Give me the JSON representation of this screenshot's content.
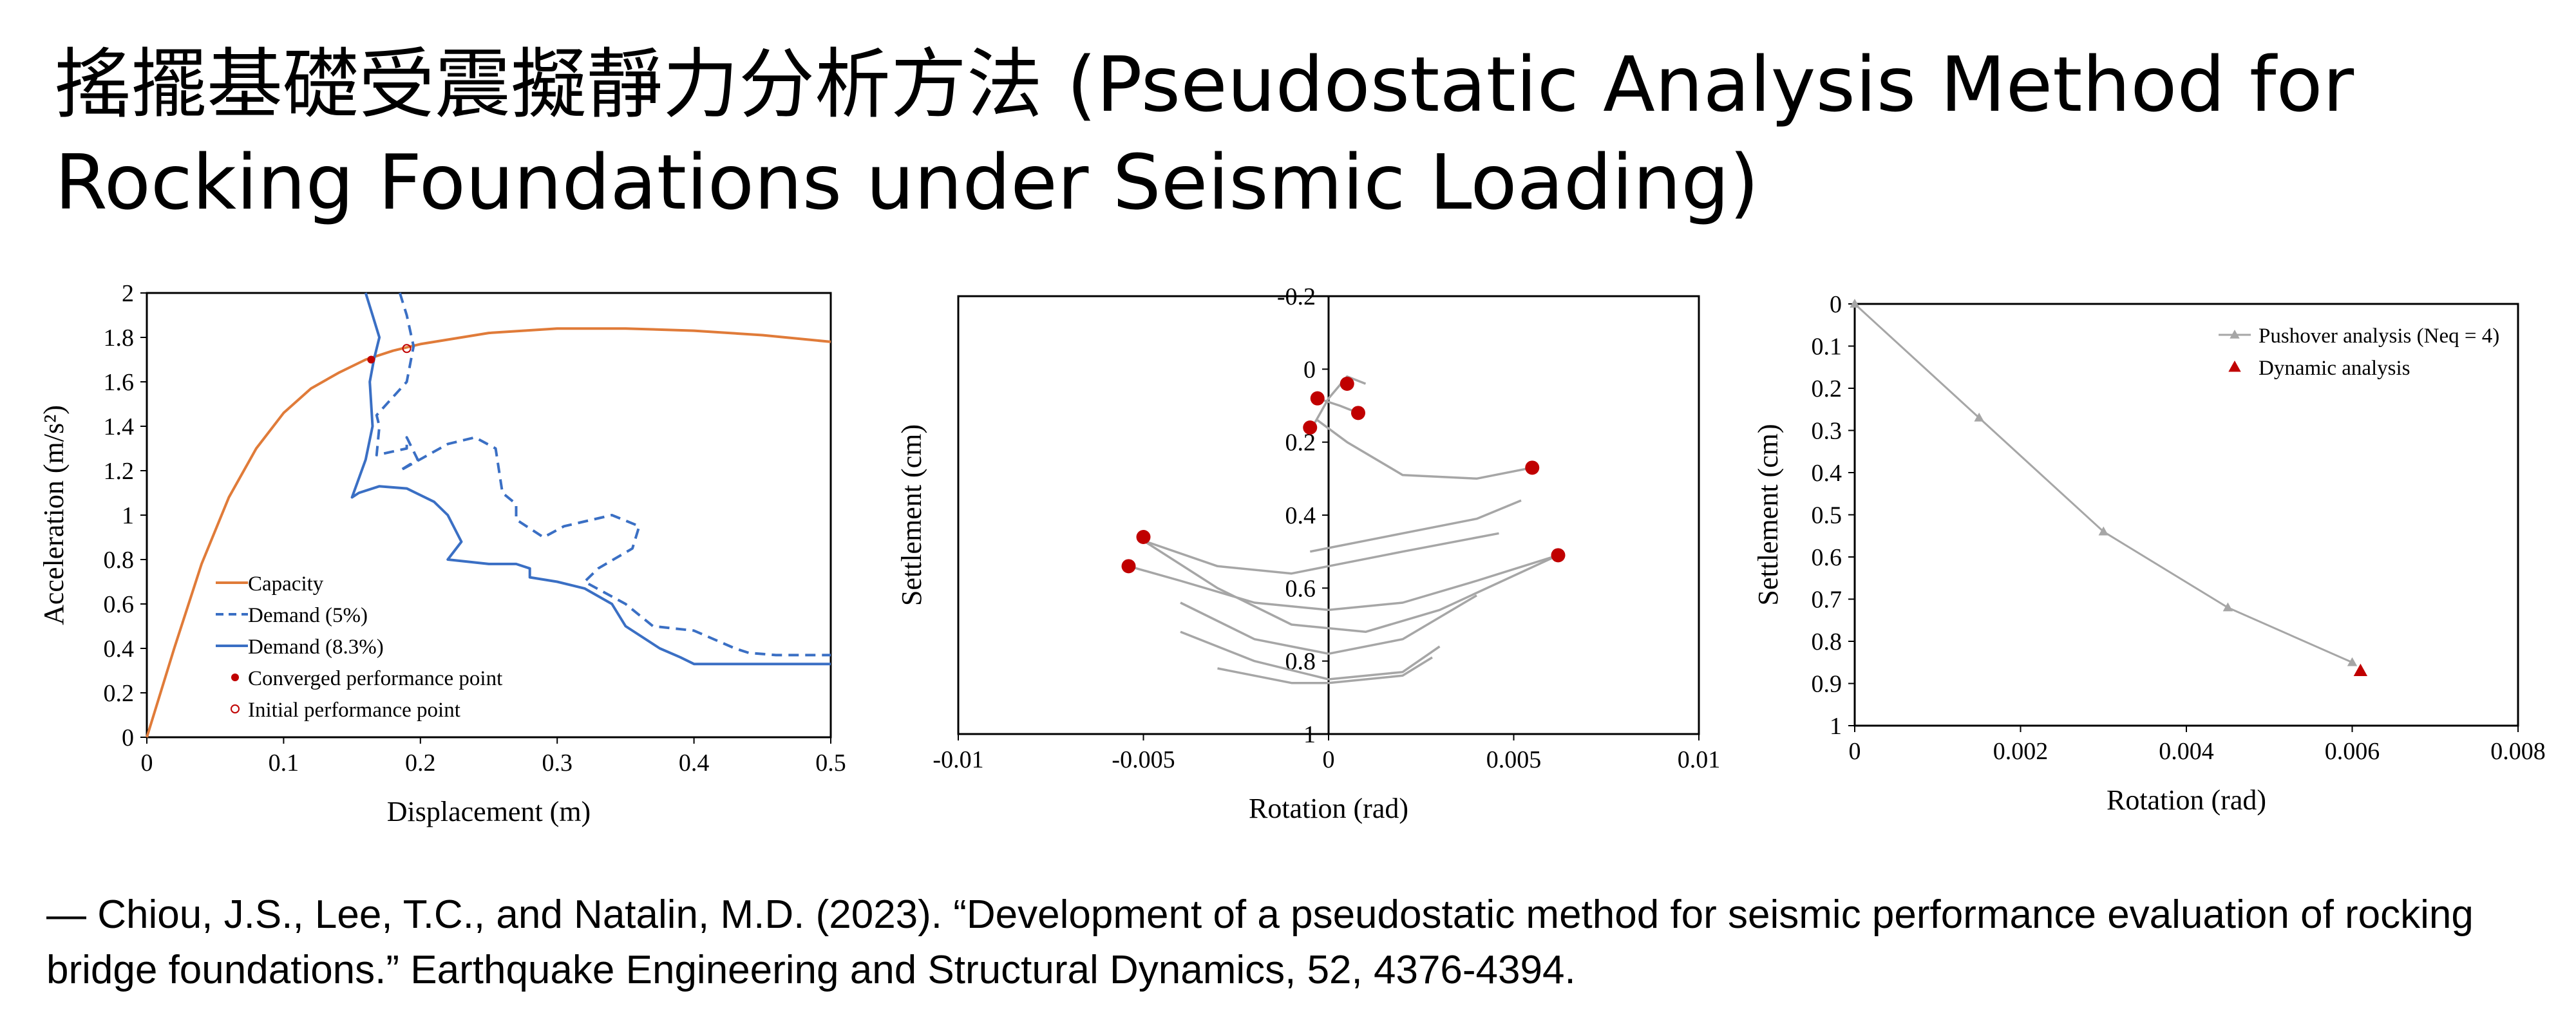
{
  "page": {
    "title": "搖擺基礎受震擬靜力分析方法 (Pseudostatic Analysis Method for Rocking Foundations under Seismic Loading)",
    "citation": "― Chiou, J.S., Lee, T.C., and Natalin, M.D. (2023). “Development of a pseudostatic method for seismic performance evaluation of rocking bridge foundations.” Earthquake Engineering and Structural Dynamics, 52, 4376-4394."
  },
  "colors": {
    "capacity": "#e07b39",
    "demand": "#3a6fc4",
    "marker_red": "#c00000",
    "gray_line": "#a6a6a6",
    "axis": "#000000"
  },
  "chart_data": [
    {
      "type": "line",
      "xlabel": "Displacement (m)",
      "ylabel": "Acceleration (m/s²)",
      "xlim": [
        0,
        0.5
      ],
      "ylim": [
        0,
        2
      ],
      "xticks": [
        "0",
        "0.1",
        "0.2",
        "0.3",
        "0.4",
        "0.5"
      ],
      "yticks": [
        "0",
        "0.2",
        "0.4",
        "0.6",
        "0.8",
        "1",
        "1.2",
        "1.4",
        "1.6",
        "1.8",
        "2"
      ],
      "legend_position": "bottom-left",
      "series": [
        {
          "name": "Capacity",
          "style": "solid",
          "color": "#e07b39",
          "x": [
            0,
            0.02,
            0.04,
            0.06,
            0.08,
            0.1,
            0.12,
            0.14,
            0.16,
            0.18,
            0.2,
            0.25,
            0.3,
            0.35,
            0.4,
            0.45,
            0.5
          ],
          "y": [
            0,
            0.4,
            0.78,
            1.08,
            1.3,
            1.46,
            1.57,
            1.64,
            1.7,
            1.74,
            1.77,
            1.82,
            1.84,
            1.84,
            1.83,
            1.81,
            1.78
          ]
        },
        {
          "name": "Demand (5%)",
          "style": "dashed",
          "color": "#3a6fc4",
          "x": [
            0.185,
            0.19,
            0.195,
            0.19,
            0.168,
            0.17,
            0.168,
            0.19,
            0.19,
            0.198,
            0.185,
            0.22,
            0.24,
            0.255,
            0.26,
            0.27,
            0.27,
            0.29,
            0.305,
            0.34,
            0.36,
            0.355,
            0.33,
            0.32,
            0.35,
            0.37,
            0.4,
            0.43,
            0.44,
            0.46,
            0.5
          ],
          "y": [
            2.0,
            1.9,
            1.76,
            1.6,
            1.45,
            1.4,
            1.27,
            1.3,
            1.35,
            1.25,
            1.2,
            1.32,
            1.35,
            1.3,
            1.1,
            1.05,
            0.98,
            0.9,
            0.95,
            1.0,
            0.95,
            0.85,
            0.76,
            0.7,
            0.6,
            0.5,
            0.48,
            0.4,
            0.38,
            0.37,
            0.37
          ]
        },
        {
          "name": "Demand (8.3%)",
          "style": "solid",
          "color": "#3a6fc4",
          "x": [
            0.16,
            0.165,
            0.17,
            0.166,
            0.163,
            0.165,
            0.16,
            0.15,
            0.155,
            0.17,
            0.19,
            0.21,
            0.22,
            0.23,
            0.22,
            0.25,
            0.27,
            0.28,
            0.28,
            0.3,
            0.32,
            0.34,
            0.35,
            0.375,
            0.39,
            0.4,
            0.42,
            0.45,
            0.5
          ],
          "y": [
            2.0,
            1.9,
            1.8,
            1.7,
            1.6,
            1.4,
            1.25,
            1.08,
            1.1,
            1.13,
            1.12,
            1.06,
            1.0,
            0.88,
            0.8,
            0.78,
            0.78,
            0.76,
            0.72,
            0.7,
            0.67,
            0.6,
            0.5,
            0.4,
            0.36,
            0.33,
            0.33,
            0.33,
            0.33
          ]
        },
        {
          "name": "Converged performance point",
          "type": "marker",
          "marker": "filled-circle",
          "color": "#c00000",
          "x": [
            0.164
          ],
          "y": [
            1.7
          ]
        },
        {
          "name": "Initial performance point",
          "type": "marker",
          "marker": "open-circle",
          "color": "#c00000",
          "x": [
            0.19
          ],
          "y": [
            1.75
          ]
        }
      ]
    },
    {
      "type": "line",
      "xlabel": "Rotation (rad)",
      "ylabel": "Settlement (cm)",
      "xlim": [
        -0.01,
        0.01
      ],
      "ylim": [
        -0.2,
        1
      ],
      "y_inverted": true,
      "xticks": [
        "-0.01",
        "-0.005",
        "0",
        "0.005",
        "0.01"
      ],
      "yticks": [
        "-0.2",
        "0",
        "0.2",
        "0.4",
        "0.6",
        "0.8",
        "1"
      ],
      "series": [
        {
          "name": "",
          "style": "solid",
          "color": "#a6a6a6",
          "loops": [
            {
              "x": [
                0.0062,
                0.004,
                0.002,
                0.0,
                -0.002,
                -0.004,
                -0.0054
              ],
              "y": [
                0.51,
                0.58,
                0.64,
                0.66,
                0.64,
                0.58,
                0.54
              ]
            },
            {
              "x": [
                -0.005,
                -0.003,
                -0.001,
                0.001,
                0.003,
                0.0062
              ],
              "y": [
                0.47,
                0.6,
                0.7,
                0.72,
                0.66,
                0.51
              ]
            },
            {
              "x": [
                -0.005,
                -0.003,
                -0.001,
                0.0,
                0.002,
                0.0046
              ],
              "y": [
                0.47,
                0.54,
                0.56,
                0.54,
                0.5,
                0.45
              ]
            },
            {
              "x": [
                -0.004,
                -0.002,
                0.0,
                0.002,
                0.004
              ],
              "y": [
                0.64,
                0.74,
                0.78,
                0.74,
                0.62
              ]
            },
            {
              "x": [
                -0.004,
                -0.002,
                0.0,
                0.002,
                0.003
              ],
              "y": [
                0.72,
                0.8,
                0.85,
                0.83,
                0.76
              ]
            },
            {
              "x": [
                -0.003,
                -0.001,
                0.0,
                0.002,
                0.0028
              ],
              "y": [
                0.82,
                0.86,
                0.86,
                0.84,
                0.79
              ]
            },
            {
              "x": [
                0.0055,
                0.004,
                0.002,
                0.0005,
                -0.0003
              ],
              "y": [
                0.27,
                0.3,
                0.29,
                0.2,
                0.14
              ]
            },
            {
              "x": [
                -0.0005,
                0.0,
                0.001,
                0.002,
                0.004,
                0.0052
              ],
              "y": [
                0.5,
                0.49,
                0.47,
                0.45,
                0.41,
                0.36
              ]
            },
            {
              "x": [
                -0.0005,
                0.0,
                0.0005,
                0.001
              ],
              "y": [
                0.17,
                0.08,
                0.02,
                0.04
              ]
            },
            {
              "x": [
                -0.0003,
                0.0003,
                0.0008
              ],
              "y": [
                0.08,
                0.1,
                0.12
              ]
            }
          ]
        },
        {
          "name": "",
          "type": "marker",
          "marker": "filled-circle",
          "color": "#c00000",
          "x": [
            -0.005,
            -0.0054,
            0.0062,
            0.0055,
            -0.0003,
            0.0005,
            -0.0005,
            0.0008
          ],
          "y": [
            0.46,
            0.54,
            0.51,
            0.27,
            0.08,
            0.04,
            0.16,
            0.12
          ]
        }
      ]
    },
    {
      "type": "line",
      "xlabel": "Rotation (rad)",
      "ylabel": "Settlement (cm)",
      "xlim": [
        0,
        0.008
      ],
      "ylim": [
        0,
        1
      ],
      "y_inverted": true,
      "xticks": [
        "0",
        "0.002",
        "0.004",
        "0.006",
        "0.008"
      ],
      "yticks": [
        "0",
        "0.1",
        "0.2",
        "0.3",
        "0.4",
        "0.5",
        "0.6",
        "0.7",
        "0.8",
        "0.9",
        "1"
      ],
      "legend_position": "top-right",
      "series": [
        {
          "name": "Pushover analysis (Neq = 4)",
          "style": "solid",
          "marker": "triangle",
          "color": "#a6a6a6",
          "x": [
            0,
            0.0015,
            0.003,
            0.0045,
            0.006
          ],
          "y": [
            0,
            0.27,
            0.54,
            0.72,
            0.85
          ]
        },
        {
          "name": "Dynamic analysis",
          "type": "marker",
          "marker": "filled-triangle",
          "color": "#c00000",
          "x": [
            0.0061
          ],
          "y": [
            0.87
          ]
        }
      ]
    }
  ]
}
